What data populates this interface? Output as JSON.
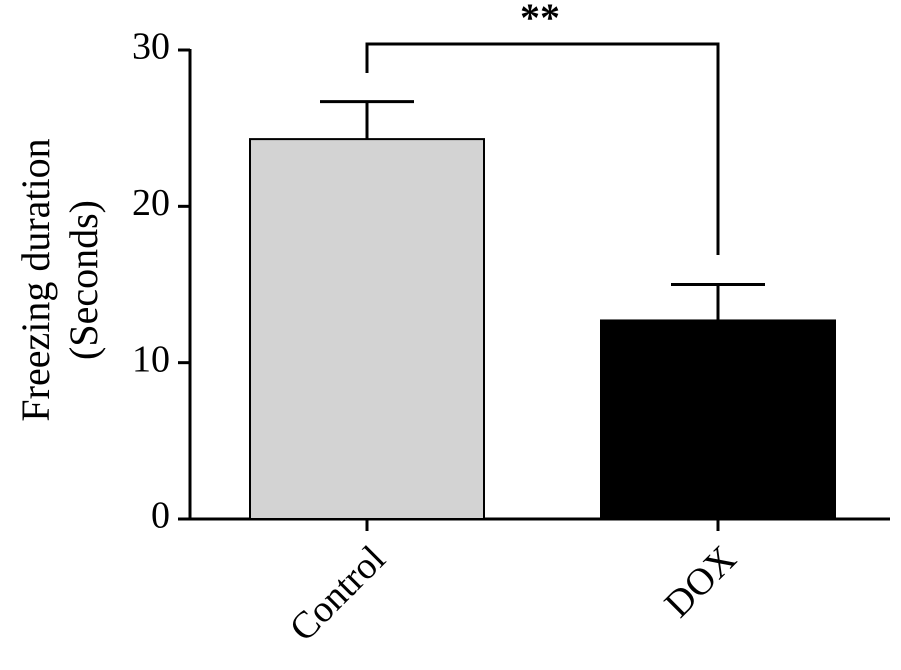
{
  "chart_data": {
    "type": "bar",
    "y_label": [
      "Freezing duration",
      "(Seconds)"
    ],
    "categories": [
      "Control",
      "DOX"
    ],
    "values": [
      24.3,
      12.7
    ],
    "errors": [
      2.4,
      2.3
    ],
    "colors": [
      "#d3d3d3",
      "#000000"
    ],
    "ylim": [
      0,
      30
    ],
    "yticks": [
      0,
      10,
      20,
      30
    ],
    "annotation": "**"
  }
}
